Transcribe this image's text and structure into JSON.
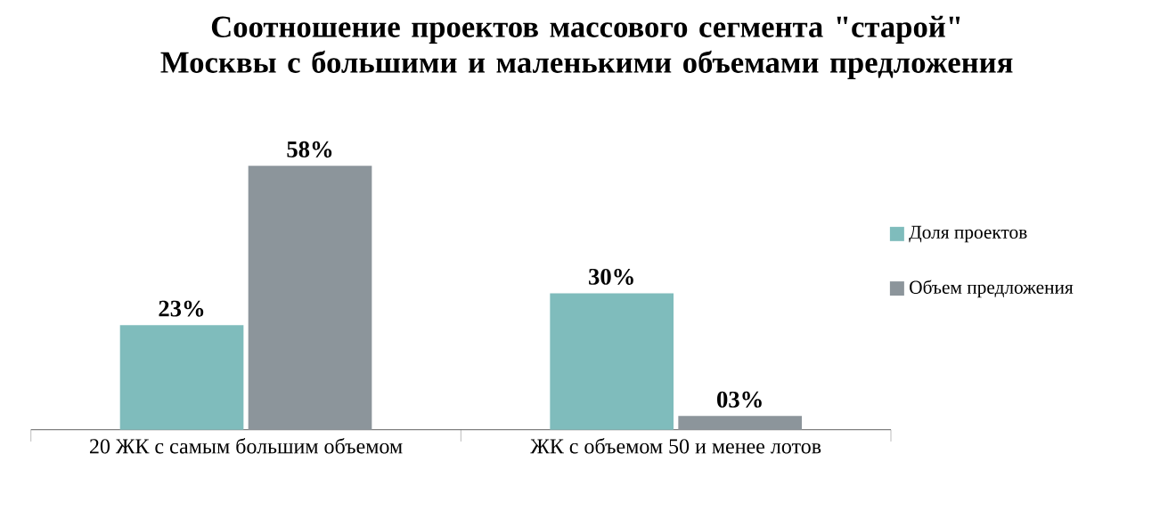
{
  "chart_data": {
    "type": "bar",
    "title": "Соотношение проектов массового сегмента \"старой\" Москвы с большими и маленькими объемами предложения",
    "categories": [
      "20 ЖК с самым большим объемом",
      "ЖК с объемом 50 и менее лотов"
    ],
    "series": [
      {
        "name": "Доля проектов",
        "color": "#7fbcbc",
        "values": [
          23,
          30
        ],
        "value_labels": [
          "23%",
          "30%"
        ]
      },
      {
        "name": "Объем предложения",
        "color": "#8c959b",
        "values": [
          58,
          3
        ],
        "value_labels": [
          "58%",
          "03%"
        ]
      }
    ],
    "legend": "right"
  }
}
